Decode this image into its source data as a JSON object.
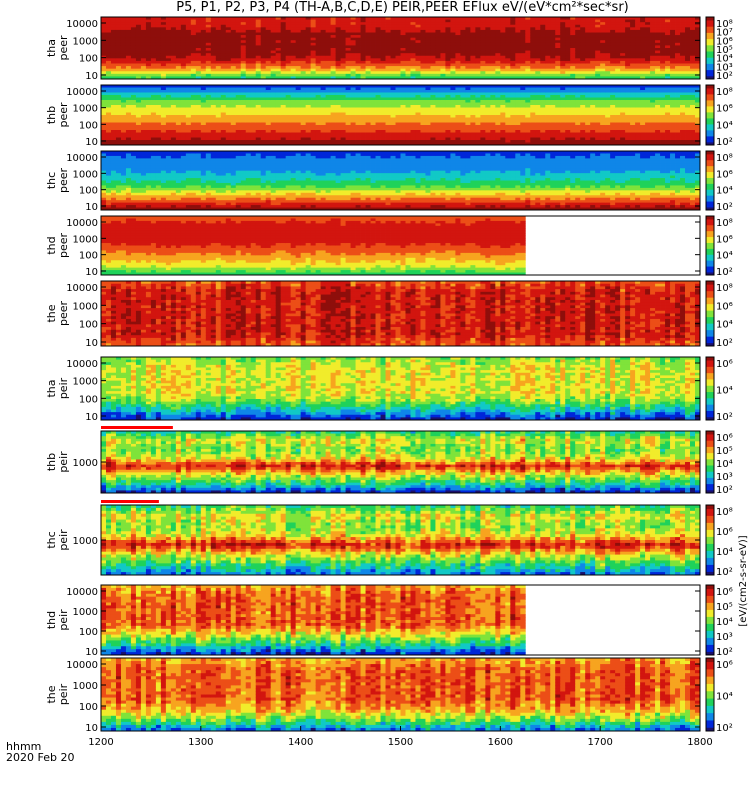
{
  "title": "P5, P1, P2, P3, P4 (TH-A,B,C,D,E) PEIR,PEER EFlux eV/(eV*cm²*sec*sr)",
  "time_unit": "hhmm",
  "date": "2020 Feb 20",
  "colors": {
    "spectrogram_scale": [
      "#1a0f6e",
      "#0026d9",
      "#0f86e8",
      "#11c9c6",
      "#1fd25a",
      "#7fe33a",
      "#f1ec2b",
      "#f7a41f",
      "#ec4e17",
      "#d2150f",
      "#8e0e0b"
    ],
    "flag_bar": "#ff0000",
    "fill": "#ffffff"
  },
  "chart_data": {
    "type": "heatmap",
    "xlim": [
      1200,
      1800
    ],
    "x_ticks": [
      "1200",
      "1300",
      "1400",
      "1500",
      "1600",
      "1700",
      "1800"
    ],
    "colorbar_label": "[eV/(cm2-s-sr-eV)]",
    "panels": [
      {
        "id": "tha_peer",
        "ylabel": "tha\npeer",
        "y_ticks": [
          "10",
          "100",
          "1000",
          "10000"
        ],
        "yscale": "log",
        "cbar_ticks": [
          "10²",
          "10³",
          "10⁴",
          "10⁵",
          "10⁶",
          "10⁷",
          "10⁸"
        ],
        "data_end": 1800,
        "profile": [
          4,
          7,
          9,
          10,
          10,
          10,
          9,
          9
        ],
        "noise": 0.15
      },
      {
        "id": "thb_peer",
        "ylabel": "thb\npeer",
        "y_ticks": [
          "10",
          "100",
          "1000",
          "10000"
        ],
        "yscale": "log",
        "cbar_ticks": [
          "10²",
          "10⁴",
          "10⁶",
          "10⁸"
        ],
        "data_end": 1800,
        "profile": [
          10,
          9,
          8,
          7,
          6,
          5,
          3,
          1
        ],
        "noise": 0.05
      },
      {
        "id": "thc_peer",
        "ylabel": "thc\npeer",
        "y_ticks": [
          "10",
          "100",
          "1000",
          "10000"
        ],
        "yscale": "log",
        "cbar_ticks": [
          "10²",
          "10⁴",
          "10⁶",
          "10⁸"
        ],
        "data_end": 1800,
        "profile": [
          10,
          8,
          6,
          4,
          3,
          2,
          2,
          1
        ],
        "noise": 0.1
      },
      {
        "id": "thd_peer",
        "ylabel": "thd\npeer",
        "y_ticks": [
          "10",
          "100",
          "1000",
          "10000"
        ],
        "yscale": "log",
        "cbar_ticks": [
          "10²",
          "10⁴",
          "10⁶",
          "10⁸"
        ],
        "data_end": 1621,
        "profile": [
          4,
          6,
          7,
          8,
          9,
          9,
          9,
          8
        ],
        "noise": 0.1
      },
      {
        "id": "the_peer",
        "ylabel": "the\npeer",
        "y_ticks": [
          "10",
          "100",
          "1000",
          "10000"
        ],
        "yscale": "log",
        "cbar_ticks": [
          "10²",
          "10⁴",
          "10⁶",
          "10⁸"
        ],
        "data_end": 1800,
        "profile": [
          8,
          9,
          9,
          9,
          9,
          9,
          9,
          8
        ],
        "noise": 0.3
      },
      {
        "id": "tha_peir",
        "ylabel": "tha\npeir",
        "y_ticks": [
          "10",
          "100",
          "1000",
          "10000"
        ],
        "yscale": "log",
        "cbar_ticks": [
          "10²",
          "10⁴",
          "10⁶"
        ],
        "data_end": 1800,
        "profile": [
          1,
          3,
          5,
          6,
          6,
          6,
          6,
          5
        ],
        "noise": 0.3
      },
      {
        "id": "thb_peir",
        "ylabel": "thb\npeir",
        "y_ticks": [
          "1000"
        ],
        "yscale": "log",
        "cbar_ticks": [
          "10²",
          "10³",
          "10⁴",
          "10⁵",
          "10⁶"
        ],
        "data_end": 1800,
        "profile": [
          1,
          4,
          6,
          9,
          6,
          5,
          6,
          4
        ],
        "noise": 0.35
      },
      {
        "id": "thc_peir",
        "ylabel": "thc\npeir",
        "y_ticks": [
          "1000"
        ],
        "yscale": "log",
        "cbar_ticks": [
          "10²",
          "10⁴",
          "10⁶",
          "10⁸"
        ],
        "data_end": 1800,
        "profile": [
          2,
          4,
          6,
          9,
          6,
          5,
          6,
          4
        ],
        "noise": 0.35
      },
      {
        "id": "thd_peir",
        "ylabel": "thd\npeir",
        "y_ticks": [
          "10",
          "100",
          "1000",
          "10000"
        ],
        "yscale": "log",
        "cbar_ticks": [
          "10²",
          "10³",
          "10⁴",
          "10⁵",
          "10⁶"
        ],
        "data_end": 1621,
        "profile": [
          1,
          4,
          6,
          8,
          8,
          8,
          8,
          7
        ],
        "noise": 0.35
      },
      {
        "id": "the_peir",
        "ylabel": "the\npeir",
        "y_ticks": [
          "10",
          "100",
          "1000",
          "10000"
        ],
        "yscale": "log",
        "cbar_ticks": [
          "10²",
          "10⁴",
          "10⁶"
        ],
        "data_end": 1800,
        "profile": [
          2,
          5,
          7,
          8,
          8,
          8,
          8,
          7
        ],
        "noise": 0.35
      }
    ]
  }
}
